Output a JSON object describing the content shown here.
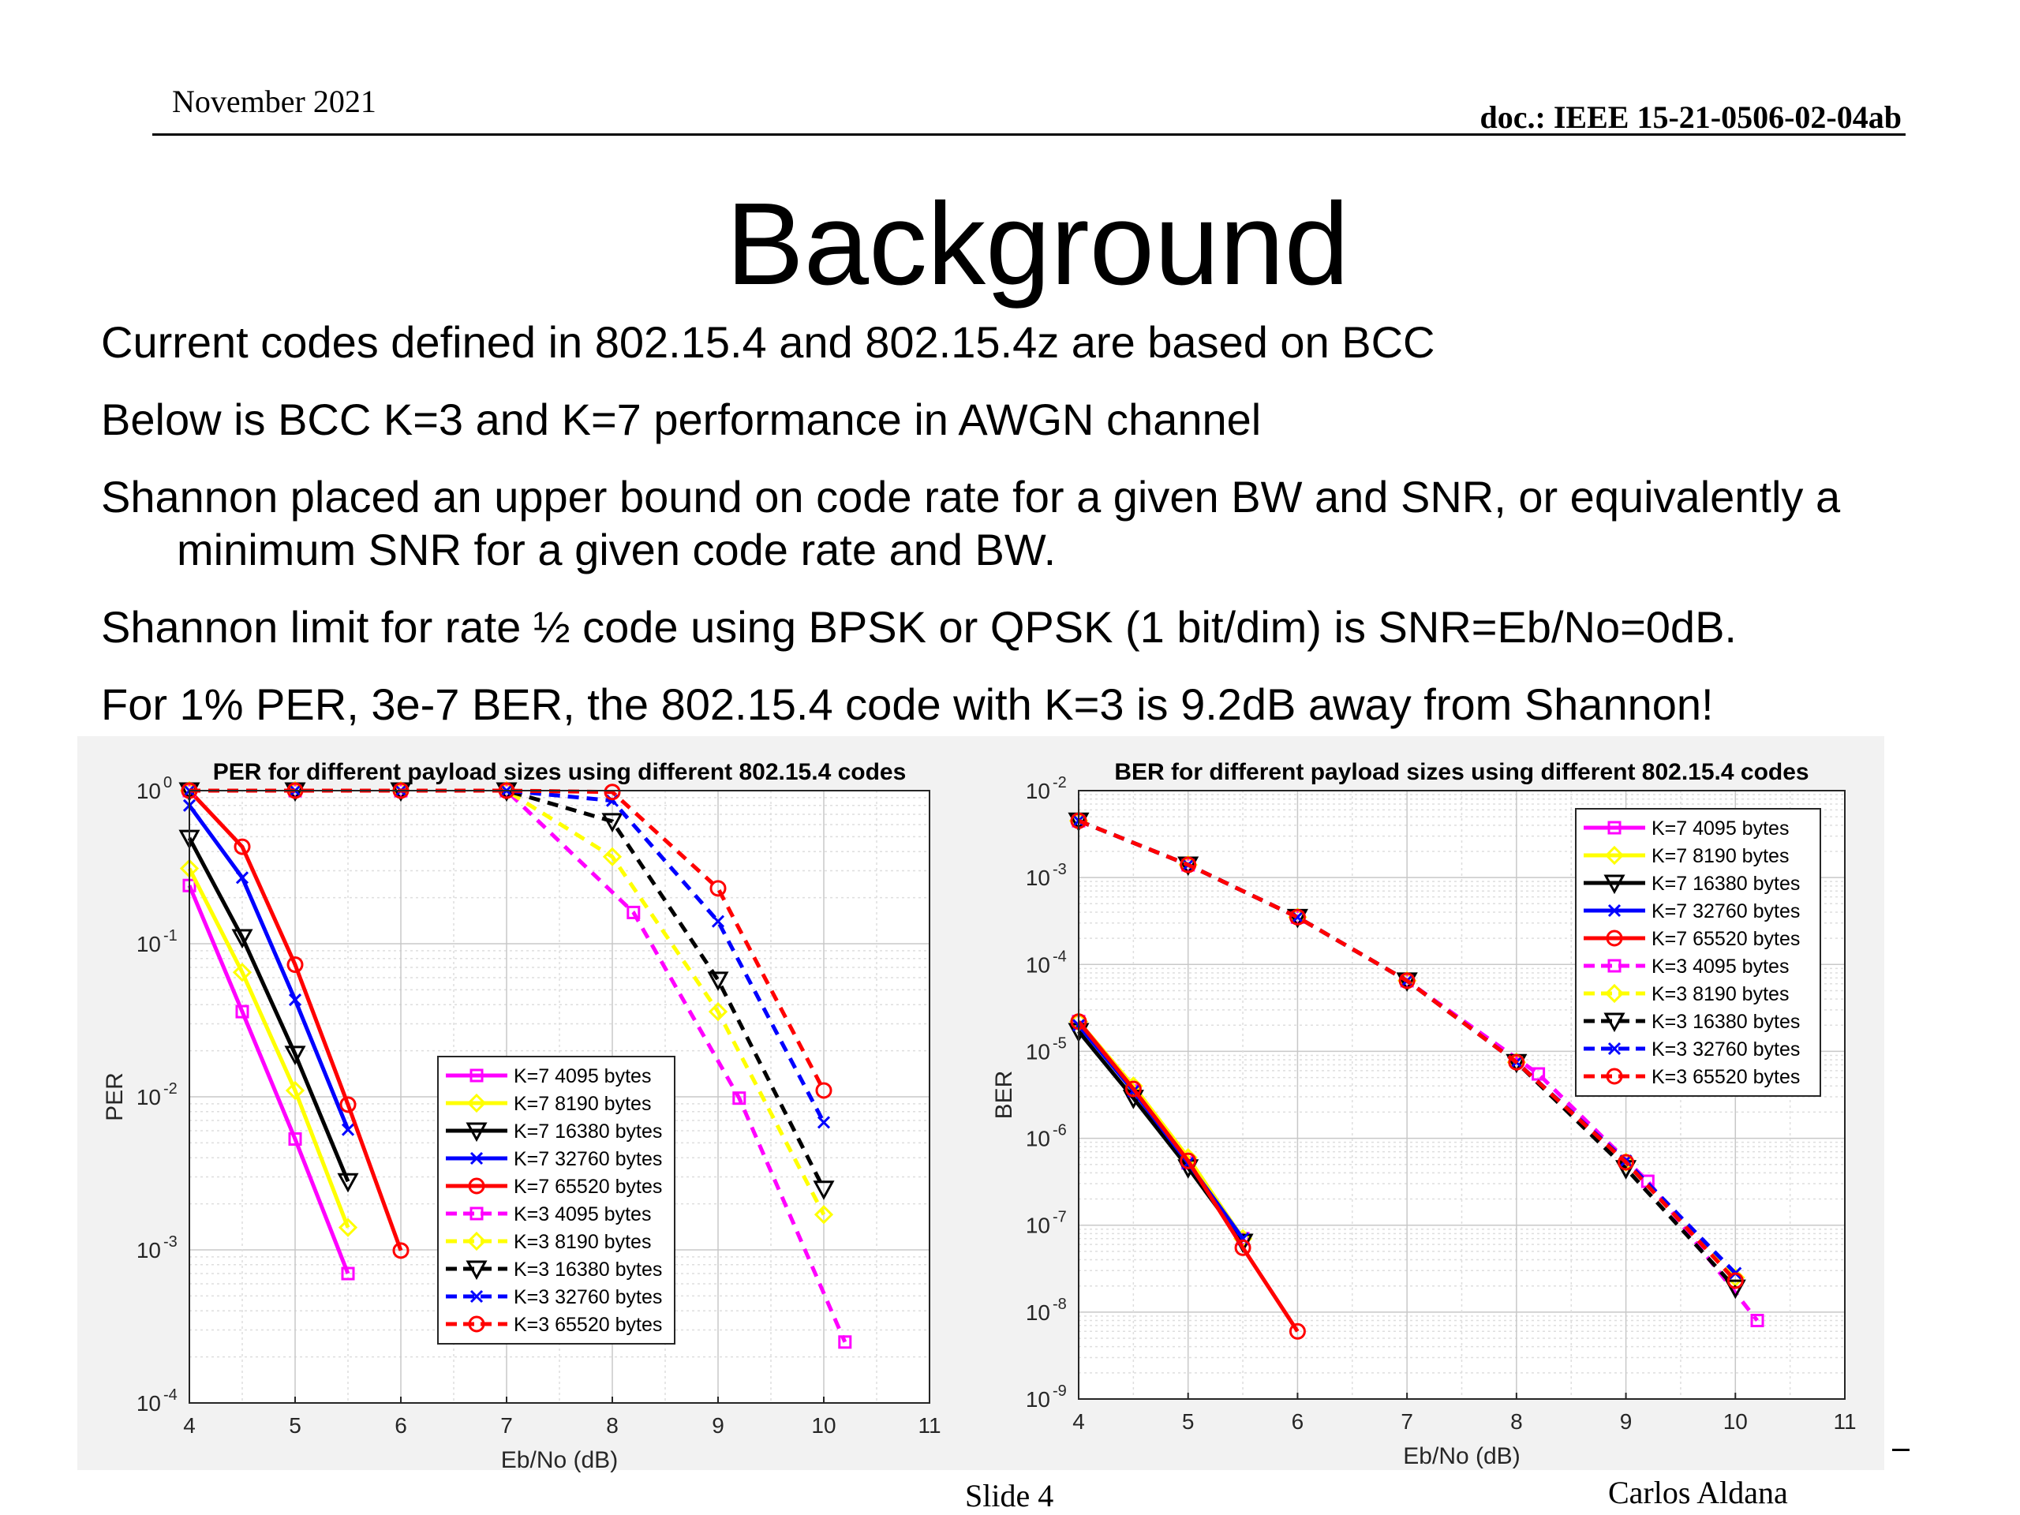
{
  "header": {
    "date": "November 2021",
    "doc": "doc.: IEEE 15-21-0506-02-04ab"
  },
  "title": "Background",
  "bullets": [
    "Current codes defined in 802.15.4 and 802.15.4z are based on BCC",
    "Below is BCC K=3 and K=7 performance in AWGN channel",
    "Shannon placed an upper bound on code rate for a given BW and SNR, or equivalently a minimum SNR for a given code rate and BW.",
    "Shannon limit for rate ½ code using BPSK or QPSK (1 bit/dim) is SNR=Eb/No=0dB.",
    "For 1% PER, 3e-7 BER, the 802.15.4 code with K=3 is 9.2dB away from Shannon!"
  ],
  "footer": {
    "slide": "Slide 4",
    "author": "Carlos Aldana"
  },
  "colors": {
    "k4095": "#ff00ff",
    "k8190": "#ffff00",
    "k16380": "#000000",
    "k32760": "#0000ff",
    "k65520": "#ff0000"
  },
  "chart_data": [
    {
      "type": "line",
      "title": "PER for different payload sizes using different 802.15.4 codes",
      "xlabel": "Eb/No (dB)",
      "ylabel": "PER",
      "xlim": [
        4,
        11
      ],
      "ylim": [
        0.0001,
        1
      ],
      "yscale": "log",
      "xticks": [
        "4",
        "5",
        "6",
        "7",
        "8",
        "9",
        "10",
        "11"
      ],
      "yticks": [
        {
          "base": "10",
          "exp": "0"
        },
        {
          "base": "10",
          "exp": "-1"
        },
        {
          "base": "10",
          "exp": "-2"
        },
        {
          "base": "10",
          "exp": "-3"
        },
        {
          "base": "10",
          "exp": "-4"
        }
      ],
      "grid": true,
      "legend_position": "center-right",
      "series": [
        {
          "name": "K=7 4095 bytes",
          "color": "#ff00ff",
          "style": "solid",
          "marker": "square",
          "x": [
            4,
            4.5,
            5,
            5.5
          ],
          "y": [
            0.24,
            0.036,
            0.0053,
            0.0007
          ]
        },
        {
          "name": "K=7 8190 bytes",
          "color": "#ffff00",
          "style": "solid",
          "marker": "diamond",
          "x": [
            4,
            4.5,
            5,
            5.5
          ],
          "y": [
            0.31,
            0.065,
            0.011,
            0.0014
          ]
        },
        {
          "name": "K=7 16380 bytes",
          "color": "#000000",
          "style": "solid",
          "marker": "triangle",
          "x": [
            4,
            4.5,
            5,
            5.5
          ],
          "y": [
            0.49,
            0.11,
            0.019,
            0.0028
          ]
        },
        {
          "name": "K=7 32760 bytes",
          "color": "#0000ff",
          "style": "solid",
          "marker": "x",
          "x": [
            4,
            4.5,
            5,
            5.5
          ],
          "y": [
            0.8,
            0.27,
            0.043,
            0.0061
          ]
        },
        {
          "name": "K=7 65520 bytes",
          "color": "#ff0000",
          "style": "solid",
          "marker": "circle",
          "x": [
            4,
            4.5,
            5,
            5.5,
            6
          ],
          "y": [
            1,
            0.43,
            0.073,
            0.0089,
            0.00099
          ]
        },
        {
          "name": "K=3 4095 bytes",
          "color": "#ff00ff",
          "style": "dashed",
          "marker": "square",
          "x": [
            4,
            5,
            6,
            7,
            8.2,
            9.2,
            10.2
          ],
          "y": [
            1,
            1,
            1,
            1,
            0.16,
            0.0098,
            0.00025
          ]
        },
        {
          "name": "K=3 8190 bytes",
          "color": "#ffff00",
          "style": "dashed",
          "marker": "diamond",
          "x": [
            4,
            5,
            6,
            7,
            8,
            9,
            10
          ],
          "y": [
            1,
            1,
            1,
            1,
            0.37,
            0.036,
            0.0017
          ]
        },
        {
          "name": "K=3 16380 bytes",
          "color": "#000000",
          "style": "dashed",
          "marker": "triangle",
          "x": [
            4,
            5,
            6,
            7,
            8,
            9,
            10
          ],
          "y": [
            1,
            1,
            1,
            1,
            0.63,
            0.058,
            0.0025
          ]
        },
        {
          "name": "K=3 32760 bytes",
          "color": "#0000ff",
          "style": "dashed",
          "marker": "x",
          "x": [
            4,
            5,
            6,
            7,
            8,
            9,
            10
          ],
          "y": [
            1,
            1,
            1,
            1,
            0.86,
            0.14,
            0.0068
          ]
        },
        {
          "name": "K=3 65520 bytes",
          "color": "#ff0000",
          "style": "dashed",
          "marker": "circle",
          "x": [
            4,
            5,
            6,
            7,
            8,
            9,
            10
          ],
          "y": [
            1,
            1,
            1,
            1,
            0.98,
            0.23,
            0.011
          ]
        }
      ]
    },
    {
      "type": "line",
      "title": "BER for different payload sizes using different 802.15.4 codes",
      "xlabel": "Eb/No (dB)",
      "ylabel": "BER",
      "xlim": [
        4,
        11
      ],
      "ylim": [
        1e-09,
        0.01
      ],
      "yscale": "log",
      "xticks": [
        "4",
        "5",
        "6",
        "7",
        "8",
        "9",
        "10",
        "11"
      ],
      "yticks": [
        {
          "base": "10",
          "exp": "-2"
        },
        {
          "base": "10",
          "exp": "-3"
        },
        {
          "base": "10",
          "exp": "-4"
        },
        {
          "base": "10",
          "exp": "-5"
        },
        {
          "base": "10",
          "exp": "-6"
        },
        {
          "base": "10",
          "exp": "-7"
        },
        {
          "base": "10",
          "exp": "-8"
        },
        {
          "base": "10",
          "exp": "-9"
        }
      ],
      "grid": true,
      "legend_position": "top-right",
      "series": [
        {
          "name": "K=7 4095 bytes",
          "color": "#ff00ff",
          "style": "solid",
          "marker": "square",
          "x": [
            4,
            4.5,
            5,
            5.5
          ],
          "y": [
            2.2e-05,
            3.5e-06,
            5.2e-07,
            7e-08
          ]
        },
        {
          "name": "K=7 8190 bytes",
          "color": "#ffff00",
          "style": "solid",
          "marker": "diamond",
          "x": [
            4,
            4.5,
            5,
            5.5
          ],
          "y": [
            2.2e-05,
            4e-06,
            6e-07,
            7e-08
          ]
        },
        {
          "name": "K=7 16380 bytes",
          "color": "#000000",
          "style": "solid",
          "marker": "triangle",
          "x": [
            4,
            4.5,
            5,
            5.5
          ],
          "y": [
            1.7e-05,
            2.9e-06,
            4.6e-07,
            6.4e-08
          ]
        },
        {
          "name": "K=7 32760 bytes",
          "color": "#0000ff",
          "style": "solid",
          "marker": "x",
          "x": [
            4,
            4.5,
            5,
            5.5
          ],
          "y": [
            2e-05,
            3.5e-06,
            5.2e-07,
            7e-08
          ]
        },
        {
          "name": "K=7 65520 bytes",
          "color": "#ff0000",
          "style": "solid",
          "marker": "circle",
          "x": [
            4,
            4.5,
            5,
            5.5,
            6
          ],
          "y": [
            2.2e-05,
            3.7e-06,
            5.5e-07,
            5.5e-08,
            6e-09
          ]
        },
        {
          "name": "K=3 4095 bytes",
          "color": "#ff00ff",
          "style": "dashed",
          "marker": "square",
          "x": [
            4,
            5,
            6,
            7,
            8.2,
            9.2,
            10.2
          ],
          "y": [
            0.0045,
            0.0014,
            0.00035,
            6.5e-05,
            5.5e-06,
            3.2e-07,
            8e-09
          ]
        },
        {
          "name": "K=3 8190 bytes",
          "color": "#ffff00",
          "style": "dashed",
          "marker": "diamond",
          "x": [
            4,
            5,
            6,
            7,
            8,
            9,
            10
          ],
          "y": [
            0.0045,
            0.0014,
            0.00035,
            6.5e-05,
            7.5e-06,
            5.3e-07,
            2.5e-08
          ]
        },
        {
          "name": "K=3 16380 bytes",
          "color": "#000000",
          "style": "dashed",
          "marker": "triangle",
          "x": [
            4,
            5,
            6,
            7,
            8,
            9,
            10
          ],
          "y": [
            0.0045,
            0.0014,
            0.00035,
            6.5e-05,
            7.5e-06,
            4.5e-07,
            1.9e-08
          ]
        },
        {
          "name": "K=3 32760 bytes",
          "color": "#0000ff",
          "style": "dashed",
          "marker": "x",
          "x": [
            4,
            5,
            6,
            7,
            8,
            9,
            10
          ],
          "y": [
            0.0045,
            0.0014,
            0.00035,
            6.5e-05,
            7.5e-06,
            5.5e-07,
            2.8e-08
          ]
        },
        {
          "name": "K=3 65520 bytes",
          "color": "#ff0000",
          "style": "dashed",
          "marker": "circle",
          "x": [
            4,
            5,
            6,
            7,
            8,
            9,
            10
          ],
          "y": [
            0.0045,
            0.0014,
            0.00035,
            6.5e-05,
            7.5e-06,
            5.3e-07,
            2.3e-08
          ]
        }
      ]
    }
  ]
}
